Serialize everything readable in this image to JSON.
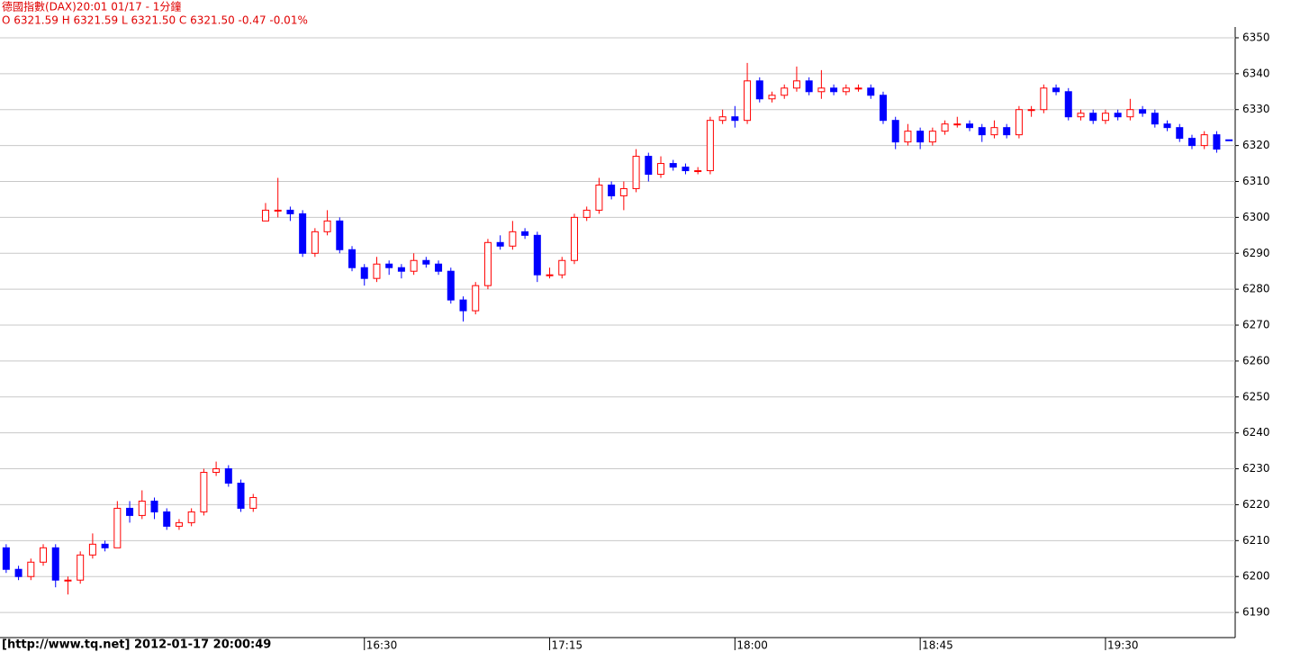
{
  "chart_data": {
    "type": "candlestick",
    "title": "德國指數(DAX)20:01 01/17  - 1分鐘",
    "subtitle": "O 6321.59 H 6321.59 L 6321.50 C 6321.50  -0.47  -0.01%",
    "footer": "[http://www.tq.net] 2012-01-17 20:00:49",
    "up_color": "#ff0000",
    "down_color": "#0000ff",
    "grid": true,
    "ylim": [
      6183,
      6353
    ],
    "yticks": [
      6190,
      6200,
      6210,
      6220,
      6230,
      6240,
      6250,
      6260,
      6270,
      6280,
      6290,
      6300,
      6310,
      6320,
      6330,
      6340,
      6350
    ],
    "categories": [
      null,
      null,
      null,
      null,
      null,
      null,
      null,
      null,
      null,
      null,
      null,
      null,
      null,
      null,
      null,
      null,
      null,
      null,
      null,
      null,
      null,
      null,
      null,
      null,
      null,
      null,
      null,
      null,
      null,
      "16:30",
      null,
      null,
      null,
      null,
      null,
      null,
      null,
      null,
      null,
      null,
      null,
      null,
      null,
      null,
      "17:15",
      null,
      null,
      null,
      null,
      null,
      null,
      null,
      null,
      null,
      null,
      null,
      null,
      null,
      null,
      "18:00",
      null,
      null,
      null,
      null,
      null,
      null,
      null,
      null,
      null,
      null,
      null,
      null,
      null,
      null,
      "18:45",
      null,
      null,
      null,
      null,
      null,
      null,
      null,
      null,
      null,
      null,
      null,
      null,
      null,
      null,
      "19:30",
      null,
      null,
      null,
      null,
      null,
      null,
      null,
      null,
      null,
      null
    ],
    "ohlc": [
      [
        6208,
        6209,
        6201,
        6202
      ],
      [
        6202,
        6203,
        6199,
        6200
      ],
      [
        6200,
        6205,
        6199,
        6204
      ],
      [
        6204,
        6209,
        6203,
        6208
      ],
      [
        6208,
        6209,
        6197,
        6199
      ],
      [
        6199,
        6200,
        6195,
        6199
      ],
      [
        6199,
        6207,
        6198,
        6206
      ],
      [
        6206,
        6212,
        6205,
        6209
      ],
      [
        6209,
        6210,
        6207,
        6208
      ],
      [
        6208,
        6221,
        6208,
        6219
      ],
      [
        6219,
        6221,
        6215,
        6217
      ],
      [
        6217,
        6224,
        6216,
        6221
      ],
      [
        6221,
        6222,
        6216,
        6218
      ],
      [
        6218,
        6219,
        6213,
        6214
      ],
      [
        6214,
        6216,
        6213,
        6215
      ],
      [
        6215,
        6219,
        6214,
        6218
      ],
      [
        6218,
        6230,
        6217,
        6229
      ],
      [
        6229,
        6232,
        6228,
        6230
      ],
      [
        6230,
        6231,
        6225,
        6226
      ],
      [
        6226,
        6227,
        6218,
        6219
      ],
      [
        6219,
        6223,
        6218,
        6222
      ],
      [
        6299,
        6304,
        6299,
        6302
      ],
      [
        6302,
        6311,
        6300,
        6302
      ],
      [
        6302,
        6303,
        6299,
        6301
      ],
      [
        6301,
        6302,
        6289,
        6290
      ],
      [
        6290,
        6297,
        6289,
        6296
      ],
      [
        6296,
        6302,
        6295,
        6299
      ],
      [
        6299,
        6300,
        6290,
        6291
      ],
      [
        6291,
        6292,
        6285,
        6286
      ],
      [
        6286,
        6287,
        6281,
        6283
      ],
      [
        6283,
        6289,
        6282,
        6287
      ],
      [
        6287,
        6288,
        6284,
        6286
      ],
      [
        6286,
        6287,
        6283,
        6285
      ],
      [
        6285,
        6290,
        6284,
        6288
      ],
      [
        6288,
        6289,
        6286,
        6287
      ],
      [
        6287,
        6288,
        6284,
        6285
      ],
      [
        6285,
        6286,
        6276,
        6277
      ],
      [
        6277,
        6278,
        6271,
        6274
      ],
      [
        6274,
        6282,
        6273,
        6281
      ],
      [
        6281,
        6294,
        6280,
        6293
      ],
      [
        6293,
        6295,
        6291,
        6292
      ],
      [
        6292,
        6299,
        6291,
        6296
      ],
      [
        6296,
        6297,
        6294,
        6295
      ],
      [
        6295,
        6296,
        6282,
        6284
      ],
      [
        6284,
        6286,
        6283,
        6284
      ],
      [
        6284,
        6289,
        6283,
        6288
      ],
      [
        6288,
        6301,
        6287,
        6300
      ],
      [
        6300,
        6303,
        6299,
        6302
      ],
      [
        6302,
        6311,
        6301,
        6309
      ],
      [
        6309,
        6310,
        6305,
        6306
      ],
      [
        6306,
        6310,
        6302,
        6308
      ],
      [
        6308,
        6319,
        6307,
        6317
      ],
      [
        6317,
        6318,
        6310,
        6312
      ],
      [
        6312,
        6317,
        6311,
        6315
      ],
      [
        6315,
        6316,
        6313,
        6314
      ],
      [
        6314,
        6315,
        6312,
        6313
      ],
      [
        6313,
        6314,
        6312,
        6313
      ],
      [
        6313,
        6328,
        6312,
        6327
      ],
      [
        6327,
        6330,
        6326,
        6328
      ],
      [
        6328,
        6331,
        6325,
        6327
      ],
      [
        6327,
        6343,
        6326,
        6338
      ],
      [
        6338,
        6339,
        6332,
        6333
      ],
      [
        6333,
        6335,
        6332,
        6334
      ],
      [
        6334,
        6337,
        6333,
        6336
      ],
      [
        6336,
        6342,
        6335,
        6338
      ],
      [
        6338,
        6339,
        6334,
        6335
      ],
      [
        6335,
        6341,
        6333,
        6336
      ],
      [
        6336,
        6337,
        6334,
        6335
      ],
      [
        6335,
        6337,
        6334,
        6336
      ],
      [
        6336,
        6337,
        6335,
        6336
      ],
      [
        6336,
        6337,
        6333,
        6334
      ],
      [
        6334,
        6335,
        6326,
        6327
      ],
      [
        6327,
        6328,
        6319,
        6321
      ],
      [
        6321,
        6326,
        6320,
        6324
      ],
      [
        6324,
        6325,
        6319,
        6321
      ],
      [
        6321,
        6325,
        6320,
        6324
      ],
      [
        6324,
        6327,
        6323,
        6326
      ],
      [
        6326,
        6328,
        6325,
        6326
      ],
      [
        6326,
        6327,
        6324,
        6325
      ],
      [
        6325,
        6326,
        6321,
        6323
      ],
      [
        6323,
        6327,
        6322,
        6325
      ],
      [
        6325,
        6326,
        6322,
        6323
      ],
      [
        6323,
        6331,
        6322,
        6330
      ],
      [
        6330,
        6331,
        6328,
        6330
      ],
      [
        6330,
        6337,
        6329,
        6336
      ],
      [
        6336,
        6337,
        6334,
        6335
      ],
      [
        6335,
        6336,
        6327,
        6328
      ],
      [
        6328,
        6330,
        6327,
        6329
      ],
      [
        6329,
        6330,
        6326,
        6327
      ],
      [
        6327,
        6330,
        6326,
        6329
      ],
      [
        6329,
        6330,
        6327,
        6328
      ],
      [
        6328,
        6333,
        6327,
        6330
      ],
      [
        6330,
        6331,
        6328,
        6329
      ],
      [
        6329,
        6330,
        6325,
        6326
      ],
      [
        6326,
        6327,
        6324,
        6325
      ],
      [
        6325,
        6326,
        6321,
        6322
      ],
      [
        6322,
        6323,
        6319,
        6320
      ],
      [
        6320,
        6324,
        6319,
        6323
      ],
      [
        6323,
        6324,
        6318,
        6319
      ],
      [
        6321.59,
        6321.59,
        6321.5,
        6321.5
      ]
    ]
  }
}
